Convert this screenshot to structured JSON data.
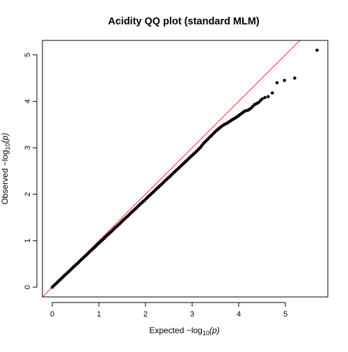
{
  "chart_data": {
    "type": "scatter",
    "title": "Acidity QQ plot (standard MLM)",
    "xlabel": {
      "prefix": "Expected  −log",
      "sub": "10",
      "suffix": "(p)"
    },
    "ylabel": {
      "prefix": "Observed  −log",
      "sub": "10",
      "suffix": "(p)"
    },
    "xlim": [
      -0.21,
      5.91
    ],
    "ylim": [
      -0.21,
      5.31
    ],
    "xticks": [
      0,
      1,
      2,
      3,
      4,
      5
    ],
    "yticks": [
      0,
      1,
      2,
      3,
      4,
      5
    ],
    "xtick_labels": [
      "0",
      "1",
      "2",
      "3",
      "4",
      "5"
    ],
    "ytick_labels": [
      "0",
      "1",
      "2",
      "3",
      "4",
      "5"
    ],
    "reference_line": {
      "intercept": 0,
      "slope": 1,
      "color": "#e8342d"
    },
    "point_color": "#000000",
    "grid": false,
    "legend": null,
    "points": [
      [
        0.0,
        0.0
      ],
      [
        0.03,
        0.03
      ],
      [
        0.06,
        0.06
      ],
      [
        0.09,
        0.085
      ],
      [
        0.12,
        0.115
      ],
      [
        0.15,
        0.145
      ],
      [
        0.18,
        0.17
      ],
      [
        0.21,
        0.2
      ],
      [
        0.24,
        0.23
      ],
      [
        0.27,
        0.26
      ],
      [
        0.3,
        0.285
      ],
      [
        0.33,
        0.315
      ],
      [
        0.36,
        0.34
      ],
      [
        0.39,
        0.37
      ],
      [
        0.42,
        0.4
      ],
      [
        0.45,
        0.43
      ],
      [
        0.48,
        0.455
      ],
      [
        0.51,
        0.485
      ],
      [
        0.54,
        0.51
      ],
      [
        0.57,
        0.54
      ],
      [
        0.6,
        0.57
      ],
      [
        0.63,
        0.6
      ],
      [
        0.66,
        0.625
      ],
      [
        0.69,
        0.655
      ],
      [
        0.72,
        0.68
      ],
      [
        0.75,
        0.71
      ],
      [
        0.78,
        0.74
      ],
      [
        0.81,
        0.77
      ],
      [
        0.84,
        0.795
      ],
      [
        0.87,
        0.825
      ],
      [
        0.9,
        0.85
      ],
      [
        0.93,
        0.88
      ],
      [
        0.96,
        0.91
      ],
      [
        0.99,
        0.94
      ],
      [
        1.02,
        0.965
      ],
      [
        1.05,
        0.995
      ],
      [
        1.08,
        1.02
      ],
      [
        1.11,
        1.05
      ],
      [
        1.14,
        1.08
      ],
      [
        1.17,
        1.11
      ],
      [
        1.2,
        1.135
      ],
      [
        1.23,
        1.165
      ],
      [
        1.26,
        1.19
      ],
      [
        1.29,
        1.22
      ],
      [
        1.32,
        1.25
      ],
      [
        1.35,
        1.28
      ],
      [
        1.38,
        1.305
      ],
      [
        1.41,
        1.335
      ],
      [
        1.44,
        1.36
      ],
      [
        1.47,
        1.39
      ],
      [
        1.5,
        1.42
      ],
      [
        1.53,
        1.45
      ],
      [
        1.56,
        1.475
      ],
      [
        1.59,
        1.505
      ],
      [
        1.62,
        1.53
      ],
      [
        1.65,
        1.56
      ],
      [
        1.68,
        1.59
      ],
      [
        1.71,
        1.62
      ],
      [
        1.74,
        1.645
      ],
      [
        1.77,
        1.675
      ],
      [
        1.8,
        1.7
      ],
      [
        1.83,
        1.73
      ],
      [
        1.86,
        1.76
      ],
      [
        1.89,
        1.79
      ],
      [
        1.92,
        1.815
      ],
      [
        1.95,
        1.845
      ],
      [
        1.98,
        1.87
      ],
      [
        2.01,
        1.9
      ],
      [
        2.04,
        1.93
      ],
      [
        2.07,
        1.96
      ],
      [
        2.1,
        1.985
      ],
      [
        2.13,
        2.015
      ],
      [
        2.16,
        2.04
      ],
      [
        2.19,
        2.07
      ],
      [
        2.22,
        2.1
      ],
      [
        2.25,
        2.13
      ],
      [
        2.28,
        2.155
      ],
      [
        2.31,
        2.185
      ],
      [
        2.34,
        2.21
      ],
      [
        2.37,
        2.24
      ],
      [
        2.4,
        2.27
      ],
      [
        2.43,
        2.3
      ],
      [
        2.46,
        2.325
      ],
      [
        2.49,
        2.355
      ],
      [
        2.52,
        2.38
      ],
      [
        2.55,
        2.41
      ],
      [
        2.58,
        2.44
      ],
      [
        2.61,
        2.47
      ],
      [
        2.64,
        2.495
      ],
      [
        2.67,
        2.525
      ],
      [
        2.7,
        2.55
      ],
      [
        2.73,
        2.58
      ],
      [
        2.76,
        2.61
      ],
      [
        2.79,
        2.64
      ],
      [
        2.82,
        2.665
      ],
      [
        2.85,
        2.695
      ],
      [
        2.88,
        2.72
      ],
      [
        2.91,
        2.75
      ],
      [
        2.94,
        2.78
      ],
      [
        2.97,
        2.81
      ],
      [
        3.0,
        2.835
      ],
      [
        3.03,
        2.865
      ],
      [
        3.06,
        2.89
      ],
      [
        3.09,
        2.92
      ],
      [
        3.12,
        2.95
      ],
      [
        3.15,
        2.98
      ],
      [
        3.18,
        3.01
      ],
      [
        3.21,
        3.05
      ],
      [
        3.24,
        3.09
      ],
      [
        3.27,
        3.12
      ],
      [
        3.3,
        3.15
      ],
      [
        3.33,
        3.18
      ],
      [
        3.36,
        3.21
      ],
      [
        3.39,
        3.24
      ],
      [
        3.42,
        3.27
      ],
      [
        3.45,
        3.3
      ],
      [
        3.48,
        3.33
      ],
      [
        3.51,
        3.36
      ],
      [
        3.54,
        3.385
      ],
      [
        3.57,
        3.41
      ],
      [
        3.6,
        3.435
      ],
      [
        3.63,
        3.46
      ],
      [
        3.66,
        3.48
      ],
      [
        3.69,
        3.5
      ],
      [
        3.72,
        3.515
      ],
      [
        3.75,
        3.53
      ],
      [
        3.78,
        3.55
      ],
      [
        3.81,
        3.57
      ],
      [
        3.84,
        3.59
      ],
      [
        3.87,
        3.61
      ],
      [
        3.9,
        3.625
      ],
      [
        3.93,
        3.645
      ],
      [
        3.96,
        3.665
      ],
      [
        3.99,
        3.685
      ],
      [
        4.02,
        3.71
      ],
      [
        4.05,
        3.73
      ],
      [
        4.08,
        3.755
      ],
      [
        4.11,
        3.775
      ],
      [
        4.14,
        3.795
      ],
      [
        4.17,
        3.8
      ],
      [
        4.2,
        3.81
      ],
      [
        4.23,
        3.83
      ],
      [
        4.26,
        3.85
      ],
      [
        4.3,
        3.89
      ],
      [
        4.34,
        3.93
      ],
      [
        4.38,
        3.95
      ],
      [
        4.42,
        3.97
      ],
      [
        4.46,
        4.01
      ],
      [
        4.5,
        4.05
      ],
      [
        4.56,
        4.08
      ],
      [
        4.63,
        4.1
      ],
      [
        4.72,
        4.18
      ],
      [
        4.82,
        4.4
      ],
      [
        4.98,
        4.45
      ],
      [
        5.2,
        4.5
      ],
      [
        5.68,
        5.1
      ]
    ]
  }
}
